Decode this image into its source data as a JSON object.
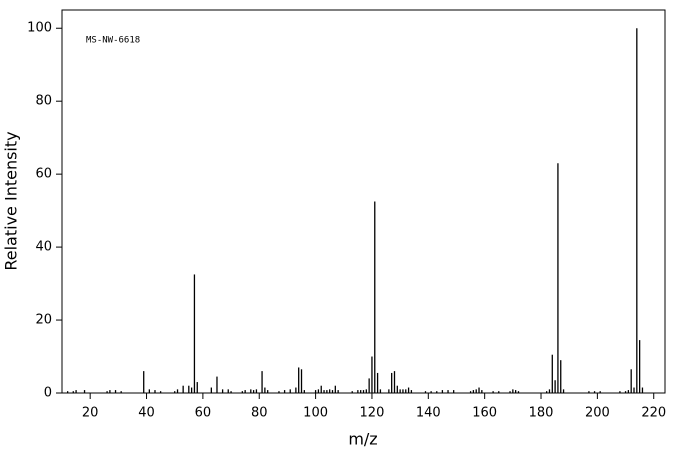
{
  "chart_data": {
    "type": "stem",
    "annotation": "MS-NW-6618",
    "x_label": "m/z",
    "y_label": "Relative Intensity",
    "color": "#000000",
    "x": [
      12,
      14,
      15,
      18,
      26,
      27,
      29,
      31,
      39,
      41,
      43,
      45,
      50,
      51,
      53,
      55,
      56,
      57,
      58,
      63,
      65,
      67,
      69,
      70,
      74,
      75,
      77,
      78,
      79,
      81,
      82,
      83,
      87,
      89,
      91,
      93,
      94,
      95,
      96,
      100,
      101,
      102,
      103,
      104,
      105,
      106,
      107,
      108,
      113,
      115,
      116,
      117,
      118,
      119,
      120,
      121,
      122,
      123,
      126,
      127,
      128,
      129,
      130,
      131,
      132,
      133,
      134,
      139,
      141,
      143,
      145,
      147,
      149,
      155,
      156,
      157,
      158,
      159,
      163,
      165,
      169,
      170,
      171,
      172,
      182,
      183,
      184,
      185,
      186,
      187,
      188,
      197,
      199,
      201,
      208,
      210,
      211,
      212,
      213,
      214,
      215,
      216
    ],
    "values": [
      0.5,
      0.5,
      0.8,
      0.8,
      0.5,
      0.8,
      0.8,
      0.5,
      6,
      1,
      0.8,
      0.5,
      0.5,
      1,
      2,
      2,
      1.5,
      32.5,
      3,
      1.5,
      4.5,
      1,
      1,
      0.5,
      0.5,
      0.8,
      1,
      0.8,
      1,
      6,
      1.5,
      0.8,
      0.5,
      0.8,
      1,
      1.5,
      7,
      6.5,
      0.8,
      0.8,
      1,
      2,
      0.8,
      0.8,
      1,
      0.8,
      2,
      0.8,
      0.5,
      0.8,
      0.8,
      0.8,
      1,
      4,
      10,
      52.5,
      5.5,
      1,
      1,
      5.5,
      6,
      2,
      1,
      1,
      1,
      1.5,
      0.8,
      0.5,
      0.5,
      0.5,
      0.8,
      0.8,
      0.8,
      0.5,
      0.8,
      1,
      1.5,
      0.8,
      0.5,
      0.5,
      0.5,
      1,
      0.8,
      0.5,
      0.5,
      1,
      10.5,
      3.5,
      63,
      9,
      1,
      0.5,
      0.5,
      0.5,
      0.5,
      0.5,
      0.8,
      6.5,
      1.5,
      100,
      14.5,
      1.5
    ],
    "xlim": [
      10,
      224
    ],
    "ylim": [
      0,
      105
    ],
    "xticks": [
      20,
      40,
      60,
      80,
      100,
      120,
      140,
      160,
      180,
      200,
      220
    ],
    "yticks": [
      0,
      20,
      40,
      60,
      80,
      100
    ]
  }
}
